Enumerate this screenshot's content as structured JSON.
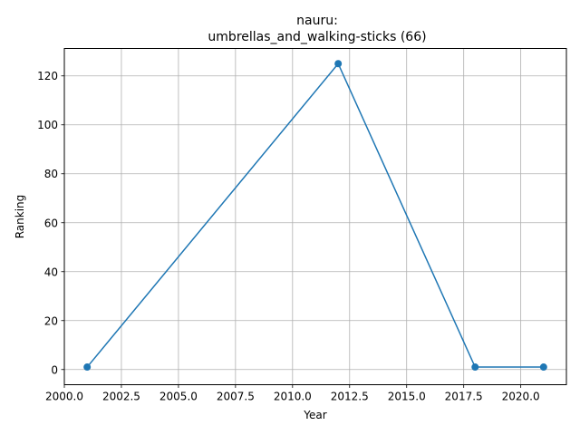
{
  "chart_data": {
    "type": "line",
    "title_lines": [
      "nauru:",
      "umbrellas_and_walking-sticks (66)"
    ],
    "xlabel": "Year",
    "ylabel": "Ranking",
    "x": [
      2001,
      2012,
      2018,
      2021
    ],
    "y": [
      1,
      125,
      1,
      1
    ],
    "xlim": [
      2000.0,
      2022.0
    ],
    "ylim": [
      -6.2,
      131.2
    ],
    "xticks": [
      2000.0,
      2002.5,
      2005.0,
      2007.5,
      2010.0,
      2012.5,
      2015.0,
      2017.5,
      2020.0
    ],
    "xtick_labels": [
      "2000.0",
      "2002.5",
      "2005.0",
      "2007.5",
      "2010.0",
      "2012.5",
      "2015.0",
      "2017.5",
      "2020.0"
    ],
    "yticks": [
      0,
      20,
      40,
      60,
      80,
      100,
      120
    ],
    "ytick_labels": [
      "0",
      "20",
      "40",
      "60",
      "80",
      "100",
      "120"
    ],
    "grid": true,
    "line_color": "#1f77b4",
    "marker": "circle"
  }
}
